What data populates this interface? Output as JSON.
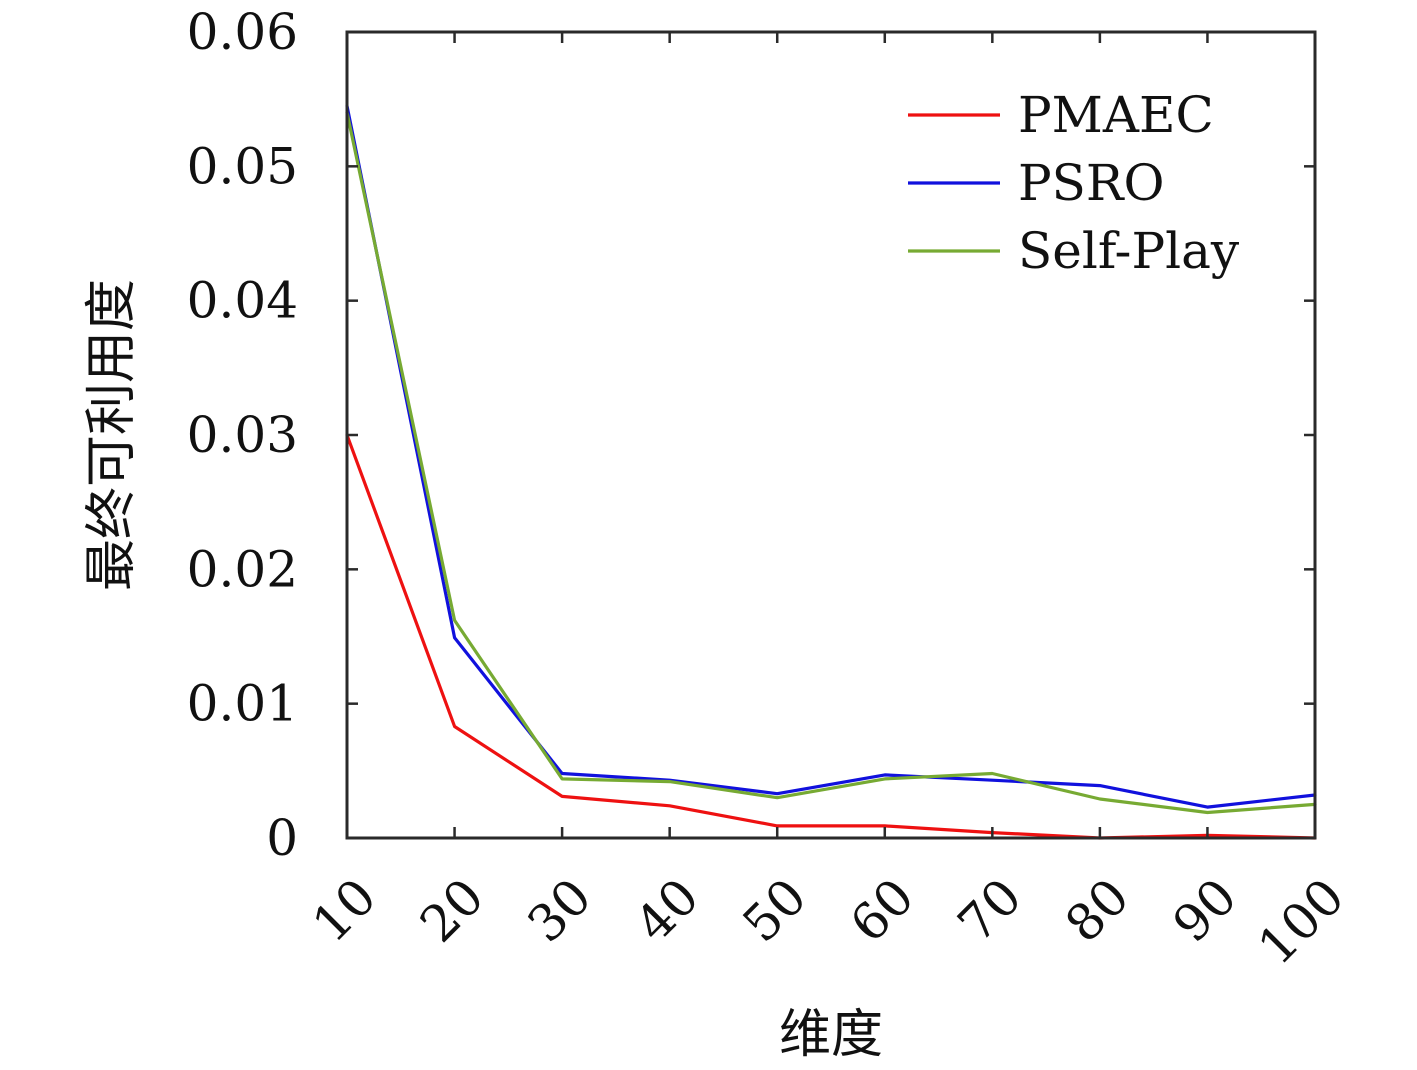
{
  "chart_data": {
    "type": "line",
    "xlabel": "维度",
    "ylabel": "最终可利用度",
    "x": [
      10,
      20,
      30,
      40,
      50,
      60,
      70,
      80,
      90,
      100
    ],
    "x_tick_labels": [
      "10",
      "20",
      "30",
      "40",
      "50",
      "60",
      "70",
      "80",
      "90",
      "100"
    ],
    "y_tick_labels": [
      "0",
      "0.01",
      "0.02",
      "0.03",
      "0.04",
      "0.05",
      "0.06"
    ],
    "y_ticks": [
      0,
      0.01,
      0.02,
      0.03,
      0.04,
      0.05,
      0.06
    ],
    "xlim": [
      10,
      100
    ],
    "ylim": [
      0,
      0.06
    ],
    "grid": false,
    "legend_position": "top-right",
    "series": [
      {
        "name": "PMAEC",
        "color": "#ee1111",
        "values": [
          0.03,
          0.0083,
          0.0031,
          0.0024,
          0.0009,
          0.0009,
          0.0004,
          0.0,
          0.0002,
          0.0
        ]
      },
      {
        "name": "PSRO",
        "color": "#1111dd",
        "values": [
          0.0545,
          0.0149,
          0.0048,
          0.0043,
          0.0033,
          0.0047,
          0.0043,
          0.0039,
          0.0023,
          0.0032
        ]
      },
      {
        "name": "Self-Play",
        "color": "#77aa33",
        "values": [
          0.054,
          0.0162,
          0.0044,
          0.0042,
          0.003,
          0.0044,
          0.0048,
          0.0029,
          0.0019,
          0.0025
        ]
      }
    ]
  }
}
